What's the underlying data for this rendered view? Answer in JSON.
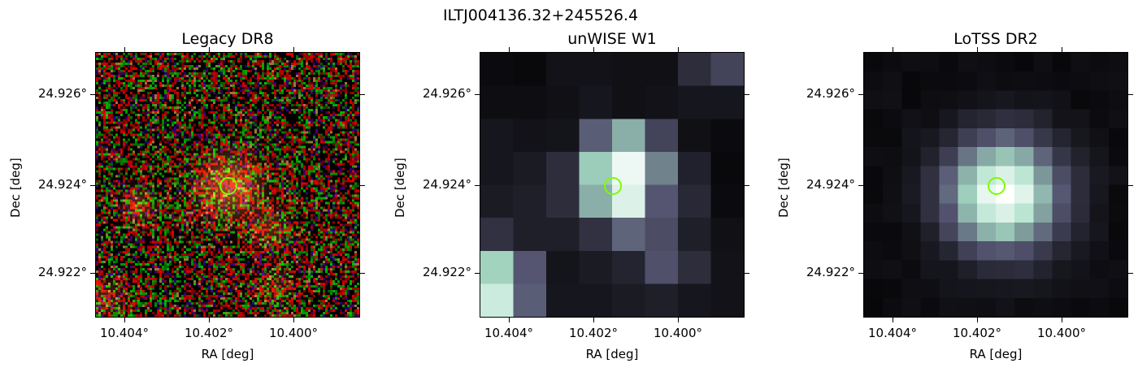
{
  "figure": {
    "suptitle": "ILTJ004136.32+245526.4"
  },
  "panels": [
    {
      "title": "Legacy DR8",
      "xlabel": "RA [deg]",
      "ylabel": "Dec [deg]",
      "xticks": [
        "10.404°",
        "10.402°",
        "10.400°"
      ],
      "yticks": [
        "24.926°",
        "24.924°",
        "24.922°"
      ],
      "style": "rgb-noise"
    },
    {
      "title": "unWISE W1",
      "xlabel": "RA [deg]",
      "ylabel": "Dec [deg]",
      "xticks": [
        "10.404°",
        "10.402°",
        "10.400°"
      ],
      "yticks": [
        "24.926°",
        "24.924°",
        "24.922°"
      ],
      "style": "coarse-bone"
    },
    {
      "title": "LoTSS DR2",
      "xlabel": "RA [deg]",
      "ylabel": "Dec [deg]",
      "xticks": [
        "10.404°",
        "10.402°",
        "10.400°"
      ],
      "yticks": [
        "24.926°",
        "24.924°",
        "24.922°"
      ],
      "style": "smooth-bone"
    }
  ],
  "marker": {
    "shape": "circle",
    "color": "#7cfc00"
  }
}
